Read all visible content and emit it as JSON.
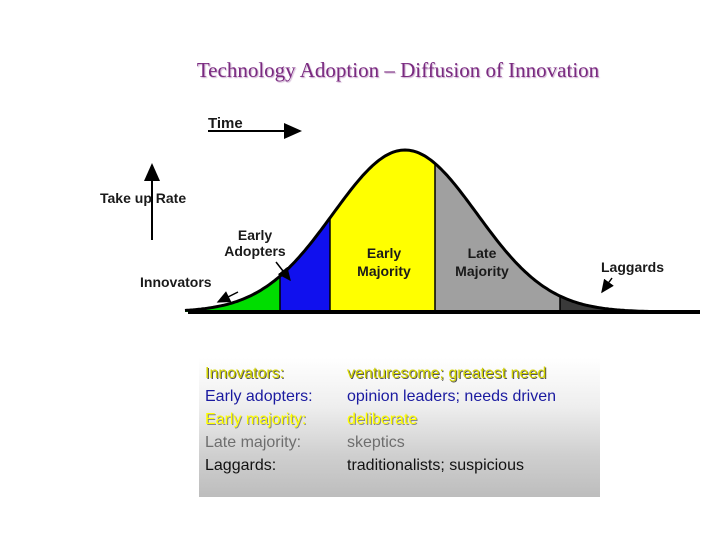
{
  "title": "Technology Adoption – Diffusion of Innovation",
  "axes": {
    "time_label": "Time",
    "take_up_label": "Take up Rate"
  },
  "segments": [
    {
      "name": "Innovators",
      "lines": [
        "Innovators"
      ],
      "color": "#00dd00"
    },
    {
      "name": "Early Adopters",
      "lines": [
        "Early",
        "Adopters"
      ],
      "color": "#1010ee"
    },
    {
      "name": "Early Majority",
      "lines": [
        "Early",
        "Majority"
      ],
      "color": "#ffff00"
    },
    {
      "name": "Late Majority",
      "lines": [
        "Late",
        "Majority"
      ],
      "color": "#a0a0a0"
    },
    {
      "name": "Laggards",
      "lines": [
        "Laggards"
      ],
      "color": "#3a3a3a"
    }
  ],
  "legend": [
    {
      "key": "Innovators:",
      "value": "venturesome; greatest need"
    },
    {
      "key": "Early adopters:",
      "value": "opinion leaders; needs driven"
    },
    {
      "key": "Early majority:",
      "value": "deliberate"
    },
    {
      "key": "Late majority:",
      "value": "skeptics"
    },
    {
      "key": "Laggards:",
      "value": "traditionalists; suspicious"
    }
  ]
}
